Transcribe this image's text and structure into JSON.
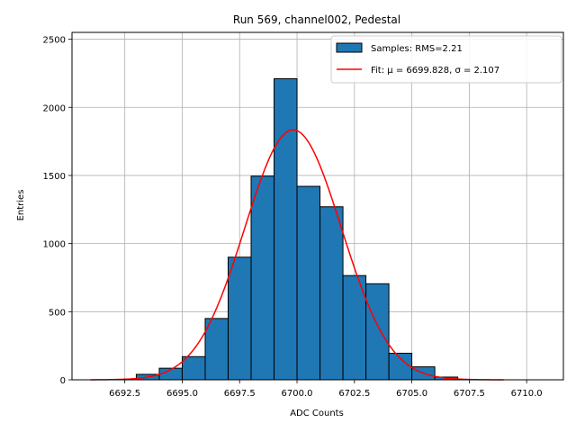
{
  "chart_data": {
    "type": "bar",
    "title": "Run 569, channel002, Pedestal",
    "xlabel": "ADC Counts",
    "ylabel": "Entries",
    "xlim": [
      6690.2,
      6711.6
    ],
    "ylim": [
      0,
      2550
    ],
    "xticks": [
      6692.5,
      6695.0,
      6697.5,
      6700.0,
      6702.5,
      6705.0,
      6707.5,
      6710.0
    ],
    "yticks": [
      0,
      500,
      1000,
      1500,
      2000,
      2500
    ],
    "grid": true,
    "legend_position": "top-right",
    "histogram": {
      "name": "Samples: RMS=2.21",
      "color": "#1f77b4",
      "edgecolor": "#000000",
      "bin_edges": [
        6693,
        6694,
        6695,
        6696,
        6697,
        6698,
        6699,
        6700,
        6701,
        6702,
        6703,
        6704,
        6705,
        6706,
        6707
      ],
      "counts": [
        40,
        85,
        170,
        450,
        900,
        1495,
        2210,
        1420,
        1270,
        765,
        705,
        195,
        95,
        20
      ]
    },
    "fit": {
      "name": "Fit: μ = 6699.828, σ = 2.107",
      "color": "#ff0000",
      "mu": 6699.828,
      "sigma": 2.107,
      "amplitude": 1835,
      "x_range": [
        6691.0,
        6709.0
      ]
    }
  }
}
